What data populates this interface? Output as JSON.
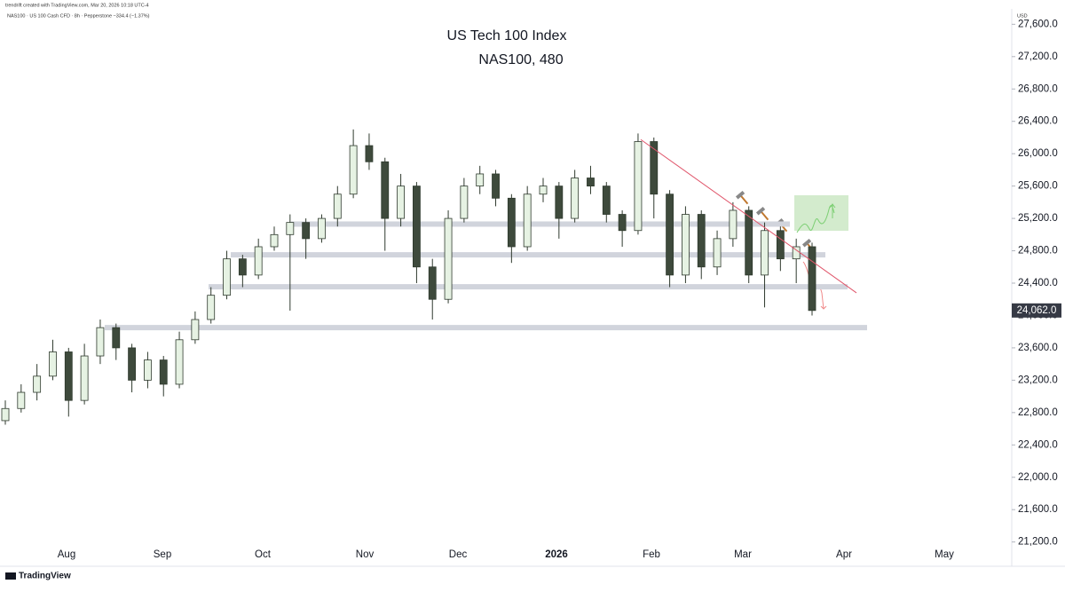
{
  "header": {
    "credit": "trendrift created with TradingView.com, Mar 20, 2026 10:18 UTC-4",
    "symbol_line": "NAS100 · US 100 Cash CFD · 8h · Pepperstone  −334.4 (−1.37%)",
    "currency": "USD"
  },
  "footer": {
    "logo": "TradingView"
  },
  "chart_data": {
    "type": "candlestick",
    "title": "US Tech 100 Index",
    "subtitle": "NAS100, 480",
    "x_labels": [
      "Aug",
      "Sep",
      "Oct",
      "Nov",
      "Dec",
      "2026",
      "Feb",
      "Mar",
      "Apr",
      "May"
    ],
    "open": [
      22700,
      22850,
      23050,
      23250,
      23550,
      22950,
      23500,
      23850,
      23600,
      23200,
      23450,
      23150,
      23700,
      23950,
      24250,
      24700,
      24500,
      24850,
      25000,
      25150,
      24950,
      25200,
      25500,
      26100,
      25900,
      25200,
      25600,
      24600,
      24200,
      25200,
      25600,
      25750,
      25450,
      24850,
      25500,
      25600,
      25200,
      25700,
      25600,
      25250,
      25050,
      26150,
      25500,
      24500,
      25250,
      24600,
      24950,
      25300,
      24500,
      25050,
      24700,
      24850
    ],
    "high": [
      22950,
      23150,
      23400,
      23700,
      23600,
      23650,
      23950,
      23900,
      23650,
      23550,
      23500,
      23800,
      24050,
      24350,
      24800,
      24750,
      24950,
      25100,
      25250,
      25200,
      25250,
      25600,
      26300,
      26250,
      25950,
      25750,
      25650,
      24700,
      25300,
      25700,
      25850,
      25800,
      25500,
      25600,
      25700,
      25650,
      25800,
      25850,
      25650,
      25300,
      26250,
      26200,
      25550,
      25350,
      25300,
      25050,
      25400,
      25350,
      25150,
      25100,
      24950,
      24900
    ],
    "low": [
      22650,
      22800,
      22950,
      23200,
      22750,
      22900,
      23400,
      23450,
      23050,
      23100,
      23000,
      23100,
      23650,
      23900,
      24200,
      24350,
      24450,
      24800,
      24060,
      24700,
      24900,
      25100,
      25450,
      25800,
      24800,
      25100,
      24400,
      23950,
      24150,
      25150,
      25500,
      25350,
      24650,
      24800,
      25400,
      24950,
      25150,
      25500,
      25150,
      24850,
      25000,
      25200,
      24350,
      24400,
      24450,
      24500,
      24850,
      24400,
      24100,
      24550,
      24400,
      24000
    ],
    "close": [
      22850,
      23050,
      23250,
      23550,
      22950,
      23500,
      23850,
      23600,
      23200,
      23450,
      23150,
      23700,
      23950,
      24250,
      24700,
      24500,
      24850,
      25000,
      25150,
      24950,
      25200,
      25500,
      26100,
      25900,
      25200,
      25600,
      24600,
      24200,
      25200,
      25600,
      25750,
      25450,
      24850,
      25500,
      25600,
      25200,
      25700,
      25600,
      25250,
      25050,
      26150,
      25500,
      24500,
      25250,
      24600,
      24950,
      25300,
      24500,
      25050,
      24700,
      24850,
      24062
    ],
    "up_color": "#e6f2e3",
    "down_color": "#3e4a3c",
    "zones": [
      25130,
      24750,
      24355,
      23850
    ],
    "trendline": [
      26175,
      24280
    ],
    "last_price": {
      "value": 24062,
      "label": "24,062.0"
    },
    "ylim": [
      20900,
      27900
    ],
    "yticks": [
      {
        "value": 21200,
        "label": "21,200.0"
      },
      {
        "value": 21600,
        "label": "21,600.0"
      },
      {
        "value": 22000,
        "label": "22,000.0"
      },
      {
        "value": 22400,
        "label": "22,400.0"
      },
      {
        "value": 22800,
        "label": "22,800.0"
      },
      {
        "value": 23200,
        "label": "23,200.0"
      },
      {
        "value": 23600,
        "label": "23,600.0"
      },
      {
        "value": 24000,
        "label": "24,000.0"
      },
      {
        "value": 24400,
        "label": "24,400.0"
      },
      {
        "value": 24800,
        "label": "24,800.0"
      },
      {
        "value": 25200,
        "label": "25,200.0"
      },
      {
        "value": 25600,
        "label": "25,600.0"
      },
      {
        "value": 26000,
        "label": "26,000.0"
      },
      {
        "value": 26400,
        "label": "26,400.0"
      },
      {
        "value": 26800,
        "label": "26,800.0"
      },
      {
        "value": 27200,
        "label": "27,200.0"
      },
      {
        "value": 27600,
        "label": "27,600.0"
      }
    ]
  }
}
